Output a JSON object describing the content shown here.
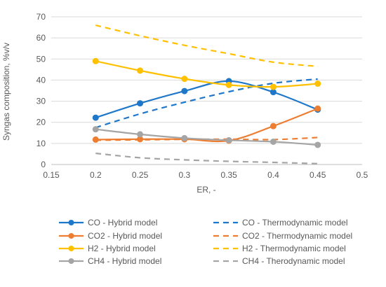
{
  "chart_data": {
    "type": "line",
    "title": "",
    "xlabel": "ER, -",
    "ylabel": "Syngas composition, %v/v",
    "xlim": [
      0.15,
      0.5
    ],
    "ylim": [
      0,
      70
    ],
    "x_ticks": [
      "0.15",
      "0.2",
      "0.25",
      "0.3",
      "0.35",
      "0.4",
      "0.45",
      "0.5"
    ],
    "y_ticks": [
      "0",
      "10",
      "20",
      "30",
      "40",
      "50",
      "60",
      "70"
    ],
    "grid": "horizontal",
    "legend_position": "bottom",
    "series": [
      {
        "name": "CO - Hybrid model",
        "color": "#1f77c9",
        "style": "solid",
        "markers": true,
        "x": [
          0.2,
          0.25,
          0.3,
          0.35,
          0.4,
          0.45
        ],
        "values": [
          22.2,
          29,
          34.8,
          39.5,
          34.3,
          26
        ]
      },
      {
        "name": "CO - Thermodynamic model",
        "color": "#1f77c9",
        "style": "dashed",
        "markers": false,
        "x": [
          0.2,
          0.25,
          0.3,
          0.35,
          0.4,
          0.45
        ],
        "values": [
          17.5,
          24,
          29.5,
          34.5,
          38.5,
          40.5
        ]
      },
      {
        "name": "CO2 - Hybrid model",
        "color": "#ed7d31",
        "style": "solid",
        "markers": true,
        "x": [
          0.2,
          0.25,
          0.3,
          0.35,
          0.4,
          0.45
        ],
        "values": [
          11.8,
          12,
          12,
          11.3,
          18.2,
          26.5
        ]
      },
      {
        "name": "CO2 - Thermodynamic model",
        "color": "#ed7d31",
        "style": "dashed",
        "markers": false,
        "x": [
          0.2,
          0.25,
          0.3,
          0.35,
          0.4,
          0.45
        ],
        "values": [
          11.5,
          11.7,
          11.9,
          12,
          11.8,
          12.8
        ]
      },
      {
        "name": "H2 - Hybrid model",
        "color": "#ffc000",
        "style": "solid",
        "markers": true,
        "x": [
          0.2,
          0.25,
          0.3,
          0.35,
          0.4,
          0.45
        ],
        "values": [
          49,
          44.5,
          40.6,
          37.7,
          36.8,
          38.3
        ]
      },
      {
        "name": "H2 - Thermodynamic model",
        "color": "#ffc000",
        "style": "dashed",
        "markers": false,
        "x": [
          0.2,
          0.25,
          0.3,
          0.35,
          0.4,
          0.45
        ],
        "values": [
          66,
          61,
          56.5,
          52.5,
          48.5,
          46.5
        ]
      },
      {
        "name": "CH4 - Hybrid model",
        "color": "#a5a5a5",
        "style": "solid",
        "markers": true,
        "x": [
          0.2,
          0.25,
          0.3,
          0.35,
          0.4,
          0.45
        ],
        "values": [
          16.7,
          14.3,
          12.5,
          11.5,
          10.8,
          9.3
        ]
      },
      {
        "name": "CH4 - Therodynamic model",
        "color": "#a5a5a5",
        "style": "dashed",
        "markers": false,
        "x": [
          0.2,
          0.25,
          0.3,
          0.35,
          0.4,
          0.45
        ],
        "values": [
          5.3,
          3.2,
          2.2,
          1.5,
          1,
          0.4
        ]
      }
    ]
  }
}
